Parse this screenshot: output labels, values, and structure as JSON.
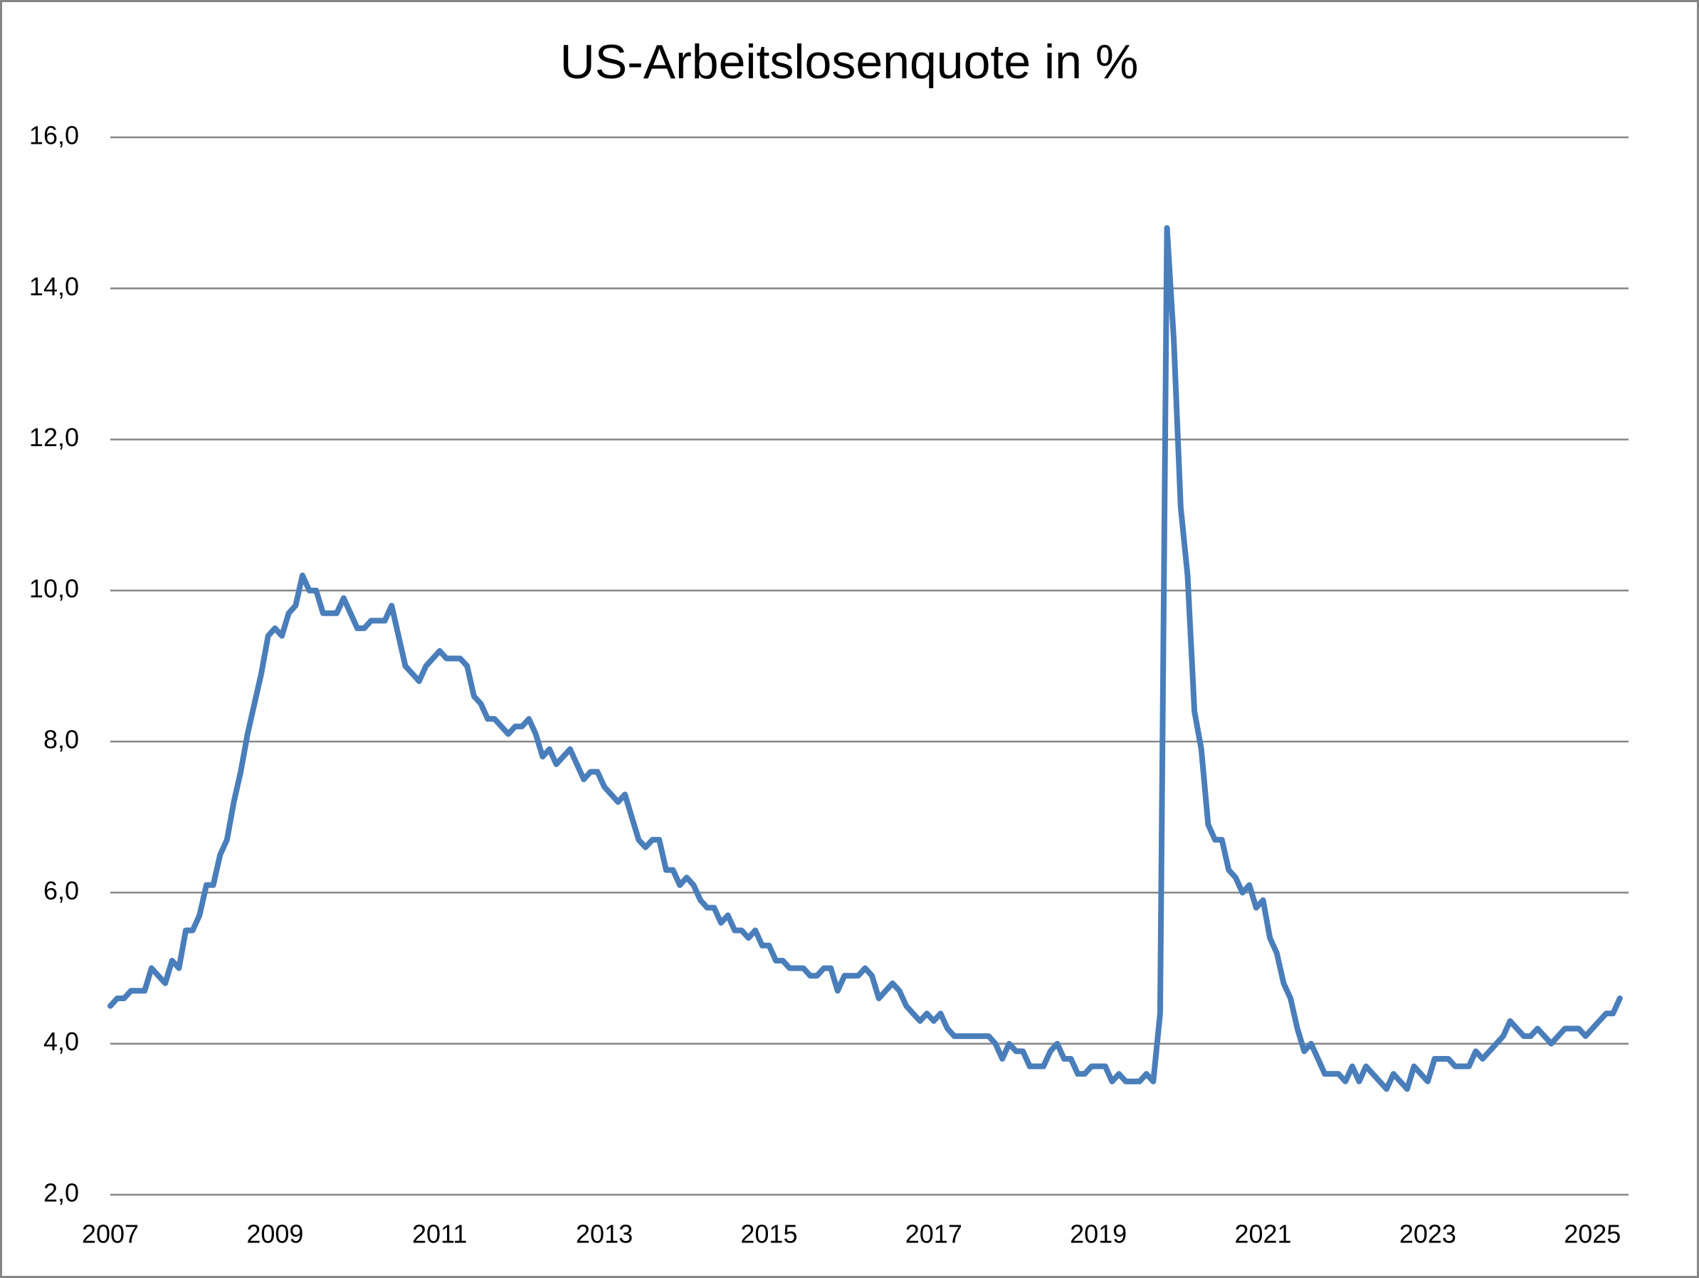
{
  "chart_data": {
    "type": "line",
    "title": "US-Arbeitslosenquote in %",
    "categories": [
      "2007",
      null,
      null,
      null,
      null,
      null,
      null,
      null,
      null,
      null,
      null,
      null,
      null,
      null,
      null,
      null,
      null,
      null,
      null,
      null,
      null,
      null,
      null,
      null,
      "2009",
      null,
      null,
      null,
      null,
      null,
      null,
      null,
      null,
      null,
      null,
      null,
      null,
      null,
      null,
      null,
      null,
      null,
      null,
      null,
      null,
      null,
      null,
      null,
      "2011",
      null,
      null,
      null,
      null,
      null,
      null,
      null,
      null,
      null,
      null,
      null,
      null,
      null,
      null,
      null,
      null,
      null,
      null,
      null,
      null,
      null,
      null,
      null,
      "2013",
      null,
      null,
      null,
      null,
      null,
      null,
      null,
      null,
      null,
      null,
      null,
      null,
      null,
      null,
      null,
      null,
      null,
      null,
      null,
      null,
      null,
      null,
      null,
      "2015",
      null,
      null,
      null,
      null,
      null,
      null,
      null,
      null,
      null,
      null,
      null,
      null,
      null,
      null,
      null,
      null,
      null,
      null,
      null,
      null,
      null,
      null,
      null,
      "2017",
      null,
      null,
      null,
      null,
      null,
      null,
      null,
      null,
      null,
      null,
      null,
      null,
      null,
      null,
      null,
      null,
      null,
      null,
      null,
      null,
      null,
      null,
      null,
      "2019",
      null,
      null,
      null,
      null,
      null,
      null,
      null,
      null,
      null,
      null,
      null,
      null,
      null,
      null,
      null,
      null,
      null,
      null,
      null,
      null,
      null,
      null,
      null,
      "2021",
      null,
      null,
      null,
      null,
      null,
      null,
      null,
      null,
      null,
      null,
      null,
      null,
      null,
      null,
      null,
      null,
      null,
      null,
      null,
      null,
      null,
      null,
      null,
      "2023",
      null,
      null,
      null,
      null,
      null,
      null,
      null,
      null,
      null,
      null,
      null,
      null,
      null,
      null,
      null,
      null,
      null,
      null,
      null,
      null,
      null,
      null,
      null,
      "2025",
      null,
      null,
      null,
      null
    ],
    "values": [
      4.5,
      4.6,
      4.6,
      4.7,
      4.7,
      4.7,
      5.0,
      4.9,
      4.8,
      5.1,
      5.0,
      5.5,
      5.5,
      5.7,
      6.1,
      6.1,
      6.5,
      6.7,
      7.2,
      7.6,
      8.1,
      8.5,
      8.9,
      9.4,
      9.5,
      9.4,
      9.7,
      9.8,
      10.2,
      10.0,
      10.0,
      9.7,
      9.7,
      9.7,
      9.9,
      9.7,
      9.5,
      9.5,
      9.6,
      9.6,
      9.6,
      9.8,
      9.4,
      9.0,
      8.9,
      8.8,
      9.0,
      9.1,
      9.2,
      9.1,
      9.1,
      9.1,
      9.0,
      8.6,
      8.5,
      8.3,
      8.3,
      8.2,
      8.1,
      8.2,
      8.2,
      8.3,
      8.1,
      7.8,
      7.9,
      7.7,
      7.8,
      7.9,
      7.7,
      7.5,
      7.6,
      7.6,
      7.4,
      7.3,
      7.2,
      7.3,
      7.0,
      6.7,
      6.6,
      6.7,
      6.7,
      6.3,
      6.3,
      6.1,
      6.2,
      6.1,
      5.9,
      5.8,
      5.8,
      5.6,
      5.7,
      5.5,
      5.5,
      5.4,
      5.5,
      5.3,
      5.3,
      5.1,
      5.1,
      5.0,
      5.0,
      5.0,
      4.9,
      4.9,
      5.0,
      5.0,
      4.7,
      4.9,
      4.9,
      4.9,
      5.0,
      4.9,
      4.6,
      4.7,
      4.8,
      4.7,
      4.5,
      4.4,
      4.3,
      4.4,
      4.3,
      4.4,
      4.2,
      4.1,
      4.1,
      4.1,
      4.1,
      4.1,
      4.1,
      4.0,
      3.8,
      4.0,
      3.9,
      3.9,
      3.7,
      3.7,
      3.7,
      3.9,
      4.0,
      3.8,
      3.8,
      3.6,
      3.6,
      3.7,
      3.7,
      3.7,
      3.5,
      3.6,
      3.5,
      3.5,
      3.5,
      3.6,
      3.5,
      4.4,
      14.8,
      13.3,
      11.1,
      10.2,
      8.4,
      7.9,
      6.9,
      6.7,
      6.7,
      6.3,
      6.2,
      6.0,
      6.1,
      5.8,
      5.9,
      5.4,
      5.2,
      4.8,
      4.6,
      4.2,
      3.9,
      4.0,
      3.8,
      3.6,
      3.6,
      3.6,
      3.5,
      3.7,
      3.5,
      3.7,
      3.6,
      3.5,
      3.4,
      3.6,
      3.5,
      3.4,
      3.7,
      3.6,
      3.5,
      3.8,
      3.8,
      3.8,
      3.7,
      3.7,
      3.7,
      3.9,
      3.8,
      3.9,
      4.0,
      4.1,
      4.3,
      4.2,
      4.1,
      4.1,
      4.2,
      4.1,
      4.0,
      4.1,
      4.2,
      4.2,
      4.2,
      4.1,
      4.2,
      4.3,
      4.4,
      4.4,
      4.6
    ],
    "color": "#4a7ebb",
    "ylim": [
      2,
      16
    ],
    "yticks": [
      {
        "value": 2,
        "label": "2,0"
      },
      {
        "value": 4,
        "label": "4,0"
      },
      {
        "value": 6,
        "label": "6,0"
      },
      {
        "value": 8,
        "label": "8,0"
      },
      {
        "value": 10,
        "label": "10,0"
      },
      {
        "value": 12,
        "label": "12,0"
      },
      {
        "value": 14,
        "label": "14,0"
      },
      {
        "value": 16,
        "label": "16,0"
      }
    ],
    "grid": true
  }
}
